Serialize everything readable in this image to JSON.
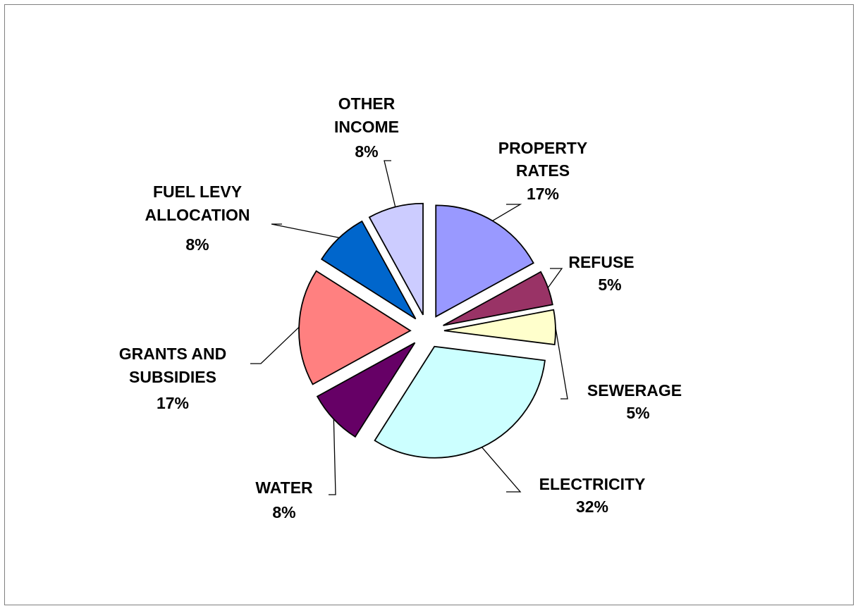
{
  "chart_data": {
    "type": "pie",
    "exploded": true,
    "slices": [
      {
        "label": "PROPERTY RATES",
        "value": 17,
        "pct_label": "17%",
        "color": "#9999FF"
      },
      {
        "label": "REFUSE",
        "value": 5,
        "pct_label": "5%",
        "color": "#993366"
      },
      {
        "label": "SEWERAGE",
        "value": 5,
        "pct_label": "5%",
        "color": "#FFFFCC"
      },
      {
        "label": "ELECTRICITY",
        "value": 32,
        "pct_label": "32%",
        "color": "#CCFFFF"
      },
      {
        "label": "WATER",
        "value": 8,
        "pct_label": "8%",
        "color": "#660066"
      },
      {
        "label": "GRANTS AND SUBSIDIES",
        "value": 17,
        "pct_label": "17%",
        "color": "#FF8080"
      },
      {
        "label": "FUEL LEVY ALLOCATION",
        "value": 8,
        "pct_label": "8%",
        "color": "#0066CC"
      },
      {
        "label": "OTHER INCOME",
        "value": 8,
        "pct_label": "8%",
        "color": "#CCCCFF"
      }
    ],
    "legend": "none",
    "data_labels": "category name and percentage with leader lines"
  }
}
